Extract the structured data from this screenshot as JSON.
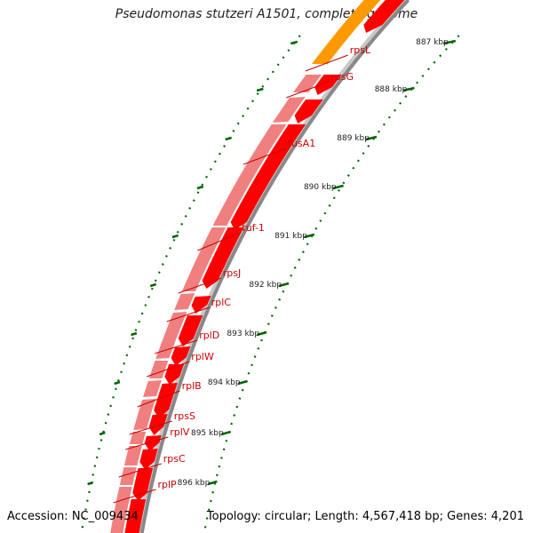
{
  "map": {
    "title": "Pseudomonas stutzeri A1501, complete genome",
    "accession": "Accession: NC_009434",
    "topology": "Topology: circular; Length: 4,567,418 bp; Genes: 4,201"
  },
  "scale": {
    "ticks": [
      "887 kbp",
      "888 kbp",
      "889 kbp",
      "890 kbp",
      "891 kbp",
      "892 kbp",
      "893 kbp",
      "894 kbp",
      "895 kbp",
      "896 kbp"
    ]
  },
  "genes": [
    "rpsL",
    "rpsG",
    "fusA1",
    "tuf-1",
    "rpsJ",
    "rplC",
    "rplD",
    "rplW",
    "rplB",
    "rpsS",
    "rplV",
    "rpsC",
    "rplP"
  ],
  "colors": {
    "cds": "#ff0000",
    "cds_feature": "#f08080",
    "other_feature": "#ff9900",
    "backbone": "#888888",
    "scale_tick": "#006600",
    "label": "#cc0000"
  }
}
